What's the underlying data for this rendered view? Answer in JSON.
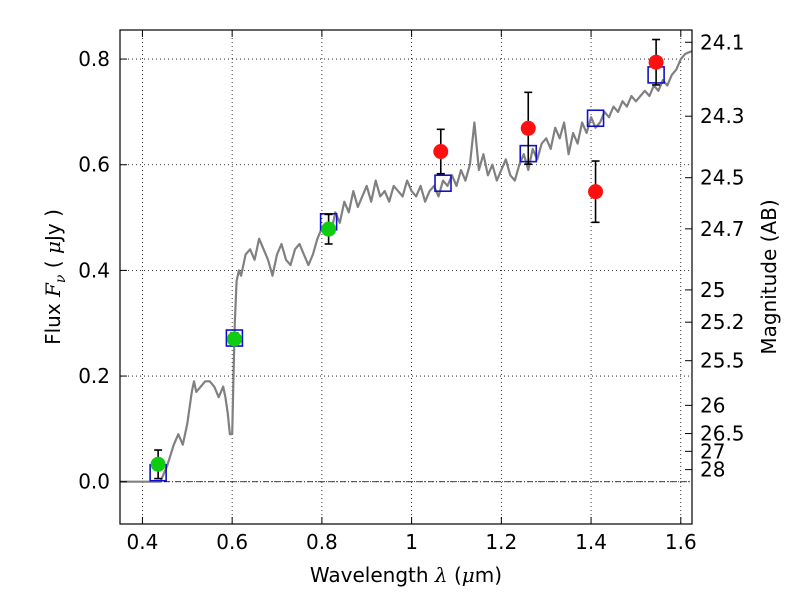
{
  "chart_data": {
    "type": "line",
    "xlabel_text": "Wavelength",
    "xlabel_symbol": "λ",
    "xlabel_unit_open": " (",
    "xlabel_unit_mu": "μ",
    "xlabel_unit_rest": "m)",
    "ylabel_text": "Flux",
    "ylabel_symbol": "F",
    "ylabel_subscript": "ν",
    "ylabel_unit_open": "( ",
    "ylabel_unit_mu": "μ",
    "ylabel_unit_rest": "Jy )",
    "y2label": "Magnitude (AB)",
    "xlim": [
      0.35,
      1.625
    ],
    "ylim": [
      -0.08,
      0.855
    ],
    "x_ticks": [
      0.4,
      0.6,
      0.8,
      1.0,
      1.2,
      1.4,
      1.6
    ],
    "x_tick_labels": [
      "0.4",
      "0.6",
      "0.8",
      "1",
      "1.2",
      "1.4",
      "1.6"
    ],
    "y_ticks": [
      0.0,
      0.2,
      0.4,
      0.6,
      0.8
    ],
    "y_tick_labels": [
      "0.0",
      "0.2",
      "0.4",
      "0.6",
      "0.8"
    ],
    "mag_ticks": [
      24.1,
      24.3,
      24.5,
      24.7,
      25,
      25.2,
      25.5,
      26,
      26.5,
      27,
      28
    ],
    "mag_tick_labels": [
      "24.1",
      "24.3",
      "24.5",
      "24.7",
      "25",
      "25.2",
      "25.5",
      "26",
      "26.5",
      "27",
      "28"
    ],
    "grid": true,
    "zero_line": true,
    "model_spectrum": {
      "color": "#808080",
      "x": [
        0.35,
        0.44,
        0.455,
        0.47,
        0.48,
        0.49,
        0.5,
        0.51,
        0.515,
        0.52,
        0.53,
        0.54,
        0.55,
        0.56,
        0.57,
        0.58,
        0.585,
        0.59,
        0.595,
        0.6,
        0.603,
        0.606,
        0.61,
        0.615,
        0.62,
        0.63,
        0.64,
        0.65,
        0.66,
        0.67,
        0.68,
        0.69,
        0.7,
        0.71,
        0.72,
        0.73,
        0.74,
        0.75,
        0.76,
        0.77,
        0.78,
        0.79,
        0.8,
        0.81,
        0.82,
        0.83,
        0.84,
        0.85,
        0.86,
        0.87,
        0.88,
        0.89,
        0.9,
        0.91,
        0.92,
        0.93,
        0.94,
        0.95,
        0.96,
        0.97,
        0.98,
        0.99,
        1.0,
        1.01,
        1.02,
        1.03,
        1.04,
        1.05,
        1.06,
        1.07,
        1.08,
        1.09,
        1.1,
        1.11,
        1.12,
        1.13,
        1.14,
        1.15,
        1.16,
        1.17,
        1.18,
        1.19,
        1.2,
        1.21,
        1.22,
        1.23,
        1.24,
        1.25,
        1.26,
        1.27,
        1.28,
        1.29,
        1.3,
        1.31,
        1.32,
        1.33,
        1.34,
        1.35,
        1.36,
        1.37,
        1.38,
        1.39,
        1.4,
        1.41,
        1.42,
        1.43,
        1.44,
        1.45,
        1.46,
        1.47,
        1.48,
        1.49,
        1.5,
        1.51,
        1.52,
        1.53,
        1.54,
        1.55,
        1.56,
        1.57,
        1.58,
        1.59,
        1.6,
        1.61,
        1.625
      ],
      "y": [
        0.0,
        0.0,
        0.03,
        0.07,
        0.09,
        0.07,
        0.11,
        0.17,
        0.19,
        0.17,
        0.18,
        0.19,
        0.19,
        0.18,
        0.16,
        0.18,
        0.16,
        0.13,
        0.09,
        0.09,
        0.2,
        0.3,
        0.38,
        0.4,
        0.39,
        0.43,
        0.44,
        0.42,
        0.46,
        0.44,
        0.42,
        0.39,
        0.43,
        0.45,
        0.42,
        0.41,
        0.44,
        0.45,
        0.43,
        0.41,
        0.43,
        0.46,
        0.48,
        0.49,
        0.47,
        0.51,
        0.49,
        0.53,
        0.51,
        0.55,
        0.52,
        0.54,
        0.56,
        0.53,
        0.57,
        0.54,
        0.55,
        0.53,
        0.56,
        0.55,
        0.54,
        0.57,
        0.55,
        0.54,
        0.56,
        0.53,
        0.55,
        0.56,
        0.54,
        0.57,
        0.56,
        0.58,
        0.56,
        0.59,
        0.57,
        0.6,
        0.68,
        0.59,
        0.62,
        0.58,
        0.6,
        0.57,
        0.59,
        0.61,
        0.58,
        0.57,
        0.6,
        0.62,
        0.59,
        0.63,
        0.61,
        0.64,
        0.65,
        0.63,
        0.67,
        0.65,
        0.68,
        0.62,
        0.66,
        0.64,
        0.68,
        0.66,
        0.69,
        0.67,
        0.68,
        0.7,
        0.69,
        0.71,
        0.7,
        0.72,
        0.71,
        0.73,
        0.72,
        0.73,
        0.74,
        0.73,
        0.75,
        0.74,
        0.76,
        0.75,
        0.77,
        0.78,
        0.8,
        0.81,
        0.815
      ]
    },
    "model_photometry": {
      "color": "#1010cc",
      "x": [
        0.435,
        0.605,
        0.815,
        1.07,
        1.26,
        1.41,
        1.545
      ],
      "y": [
        0.017,
        0.272,
        0.492,
        0.565,
        0.621,
        0.688,
        0.77
      ]
    },
    "optical_points": {
      "color": "#10cc10",
      "x": [
        0.435,
        0.605,
        0.815
      ],
      "y": [
        0.033,
        0.27,
        0.478
      ],
      "yerr": [
        0.027,
        0.012,
        0.028
      ]
    },
    "nir_points": {
      "color": "#ff1010",
      "x": [
        1.065,
        1.26,
        1.41,
        1.545
      ],
      "y": [
        0.625,
        0.669,
        0.549,
        0.794
      ],
      "yerr": [
        0.042,
        0.068,
        0.058,
        0.043
      ]
    }
  }
}
